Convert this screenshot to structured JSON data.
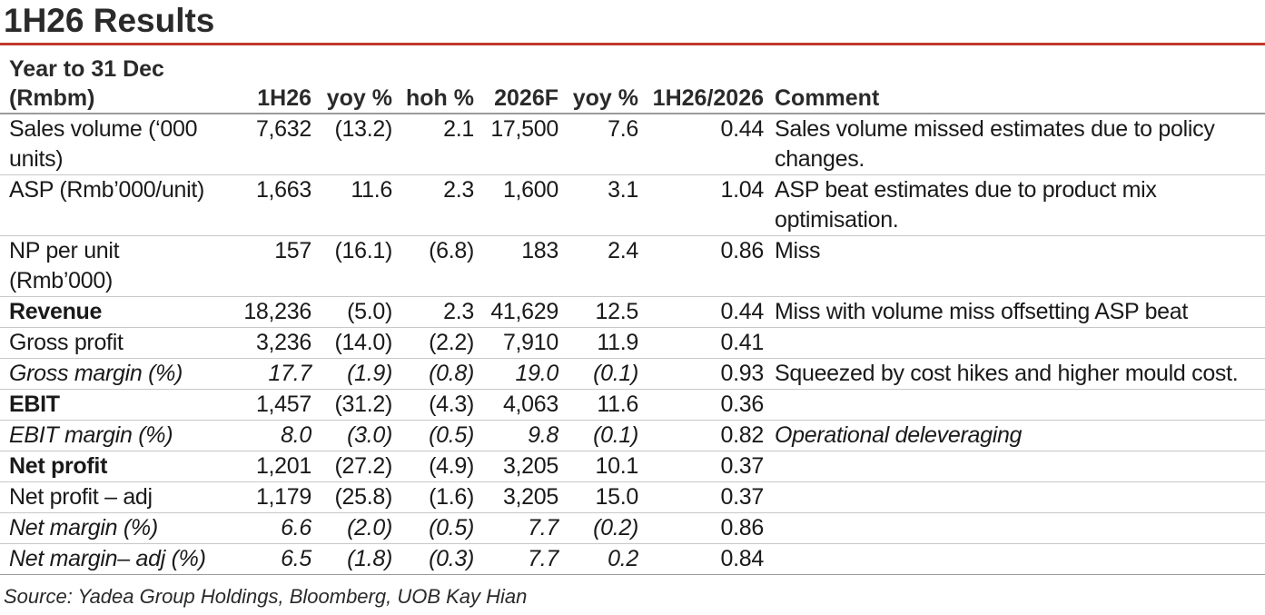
{
  "title": "1H26 Results",
  "header": {
    "col_label_line1": "Year to 31 Dec",
    "col_label_line2": "(Rmbm)",
    "col_1h26": "1H26",
    "col_yoy": "yoy %",
    "col_hoh": "hoh %",
    "col_2026f": "2026F",
    "col_yoy2": "yoy %",
    "col_ratio": "1H26/2026",
    "col_comment": "Comment"
  },
  "rows": [
    {
      "label": "Sales volume (‘000 units)",
      "v1h26": "7,632",
      "yoy": "(13.2)",
      "hoh": "2.1",
      "f2026": "17,500",
      "yoy2": "7.6",
      "ratio": "0.44",
      "comment": "Sales volume missed estimates due to policy changes."
    },
    {
      "label": "ASP (Rmb’000/unit)",
      "v1h26": "1,663",
      "yoy": "11.6",
      "hoh": "2.3",
      "f2026": "1,600",
      "yoy2": "3.1",
      "ratio": "1.04",
      "comment": "ASP beat estimates due to product mix optimisation."
    },
    {
      "label": "NP per unit (Rmb’000)",
      "v1h26": "157",
      "yoy": "(16.1)",
      "hoh": "(6.8)",
      "f2026": "183",
      "yoy2": "2.4",
      "ratio": "0.86",
      "comment": "Miss"
    },
    {
      "label": "Revenue",
      "v1h26": "18,236",
      "yoy": "(5.0)",
      "hoh": "2.3",
      "f2026": "41,629",
      "yoy2": "12.5",
      "ratio": "0.44",
      "comment": "Miss with volume miss offsetting ASP beat"
    },
    {
      "label": "Gross profit",
      "v1h26": "3,236",
      "yoy": "(14.0)",
      "hoh": "(2.2)",
      "f2026": "7,910",
      "yoy2": "11.9",
      "ratio": "0.41",
      "comment": ""
    },
    {
      "label": "Gross margin (%)",
      "v1h26": "17.7",
      "yoy": "(1.9)",
      "hoh": "(0.8)",
      "f2026": "19.0",
      "yoy2": "(0.1)",
      "ratio": "0.93",
      "comment": "Squeezed by cost hikes and higher mould cost."
    },
    {
      "label": "EBIT",
      "v1h26": "1,457",
      "yoy": "(31.2)",
      "hoh": "(4.3)",
      "f2026": "4,063",
      "yoy2": "11.6",
      "ratio": "0.36",
      "comment": ""
    },
    {
      "label": "EBIT margin (%)",
      "v1h26": "8.0",
      "yoy": "(3.0)",
      "hoh": "(0.5)",
      "f2026": "9.8",
      "yoy2": "(0.1)",
      "ratio": "0.82",
      "comment": "Operational deleveraging"
    },
    {
      "label": "Net profit",
      "v1h26": "1,201",
      "yoy": "(27.2)",
      "hoh": "(4.9)",
      "f2026": "3,205",
      "yoy2": "10.1",
      "ratio": "0.37",
      "comment": ""
    },
    {
      "label": "Net profit – adj",
      "v1h26": "1,179",
      "yoy": "(25.8)",
      "hoh": "(1.6)",
      "f2026": "3,205",
      "yoy2": "15.0",
      "ratio": "0.37",
      "comment": ""
    },
    {
      "label": "Net margin (%)",
      "v1h26": "6.6",
      "yoy": "(2.0)",
      "hoh": "(0.5)",
      "f2026": "7.7",
      "yoy2": "(0.2)",
      "ratio": "0.86",
      "comment": ""
    },
    {
      "label": "Net margin– adj (%)",
      "v1h26": "6.5",
      "yoy": "(1.8)",
      "hoh": "(0.3)",
      "f2026": "7.7",
      "yoy2": "0.2",
      "ratio": "0.84",
      "comment": ""
    }
  ],
  "source": "Source: Yadea Group Holdings, Bloomberg, UOB Kay Hian",
  "colors": {
    "title_rule": "#c0392b"
  }
}
